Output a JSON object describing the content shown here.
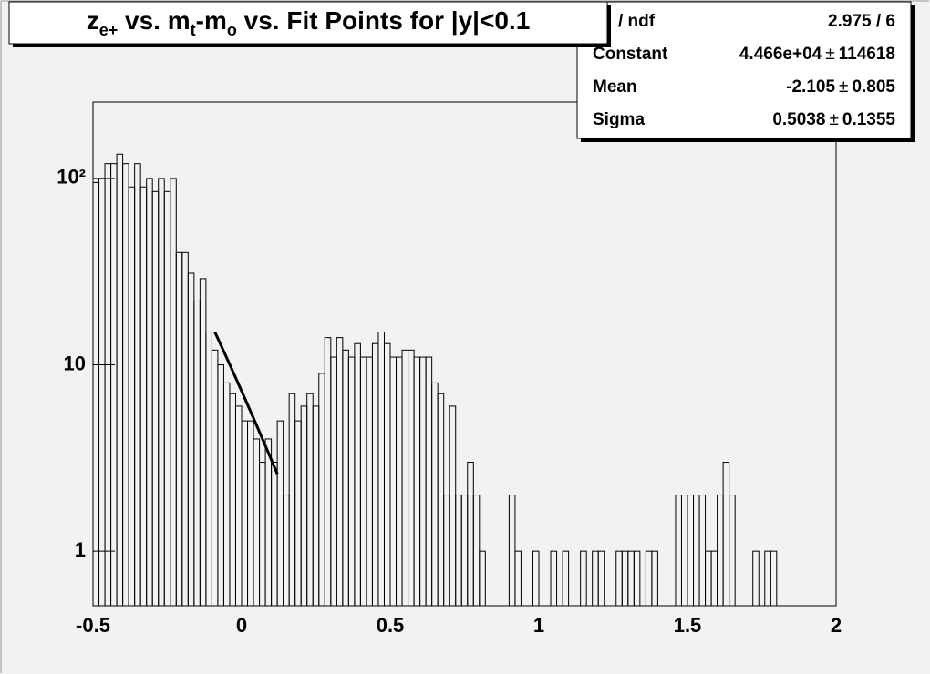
{
  "chart_data": {
    "type": "histogram",
    "title": [
      {
        "text": "z"
      },
      {
        "text": "e+",
        "sub": true
      },
      {
        "text": " vs. m"
      },
      {
        "text": "t",
        "sub": true
      },
      {
        "text": "-m"
      },
      {
        "text": "o",
        "sub": true
      },
      {
        "text": " vs. Fit Points for |y|<0.1"
      }
    ],
    "bins": [
      -0.5,
      -0.48,
      -0.46,
      -0.44,
      -0.42,
      -0.4,
      -0.38,
      -0.36,
      -0.34,
      -0.32,
      -0.3,
      -0.28,
      -0.26,
      -0.24,
      -0.22,
      -0.2,
      -0.18,
      -0.16,
      -0.14,
      -0.12,
      -0.1,
      -0.08,
      -0.06,
      -0.04,
      -0.02,
      0,
      0.02,
      0.04,
      0.06,
      0.08,
      0.1,
      0.12,
      0.14,
      0.16,
      0.18,
      0.2,
      0.22,
      0.24,
      0.26,
      0.28,
      0.3,
      0.32,
      0.34,
      0.36,
      0.38,
      0.4,
      0.42,
      0.44,
      0.46,
      0.48,
      0.5,
      0.52,
      0.54,
      0.56,
      0.58,
      0.6,
      0.62,
      0.64,
      0.66,
      0.68,
      0.7,
      0.72,
      0.74,
      0.76,
      0.78,
      0.8,
      0.82,
      0.84,
      0.86,
      0.88,
      0.9,
      0.92,
      0.94,
      0.96,
      0.98,
      1,
      1.02,
      1.04,
      1.06,
      1.08,
      1.1,
      1.12,
      1.14,
      1.16,
      1.18,
      1.2,
      1.22,
      1.24,
      1.26,
      1.28,
      1.3,
      1.32,
      1.34,
      1.36,
      1.38,
      1.4,
      1.42,
      1.44,
      1.46,
      1.48,
      1.5,
      1.52,
      1.54,
      1.56,
      1.58,
      1.6,
      1.62,
      1.64,
      1.66,
      1.68,
      1.7,
      1.72,
      1.74,
      1.76,
      1.78,
      1.8,
      1.82,
      1.84,
      1.86,
      1.88,
      1.9,
      1.92,
      1.94,
      1.96,
      1.98,
      2
    ],
    "values": [
      95,
      100,
      120,
      120,
      135,
      120,
      90,
      120,
      90,
      100,
      85,
      100,
      85,
      100,
      40,
      40,
      31,
      22,
      29,
      15,
      12,
      10,
      8,
      7,
      6,
      5,
      5,
      4,
      3,
      4,
      3,
      5,
      2,
      7,
      5,
      6,
      7,
      6,
      9,
      14,
      11,
      14,
      12,
      11,
      13,
      11,
      11,
      13,
      15,
      13,
      11,
      11,
      12,
      12,
      11,
      11,
      11,
      8,
      7,
      2,
      6,
      2,
      2,
      3,
      2,
      1,
      0,
      0,
      0,
      0,
      2,
      1,
      0,
      0,
      1,
      0,
      0,
      1,
      0,
      1,
      0,
      0,
      1,
      0,
      1,
      1,
      0,
      0,
      1,
      1,
      1,
      1,
      0,
      1,
      1,
      0,
      0,
      0,
      2,
      2,
      2,
      2,
      2,
      1,
      1,
      2,
      3,
      2,
      0,
      0,
      0,
      1,
      0,
      1,
      1,
      0,
      0,
      0,
      0,
      0,
      0,
      0,
      0,
      0,
      0
    ],
    "color": "#000000",
    "xlim": [
      -0.5,
      2
    ],
    "ylim": [
      0.51,
      257
    ],
    "log_y": true,
    "xticks": [
      -0.5,
      0,
      0.5,
      1,
      1.5,
      2
    ],
    "yticks": [
      1,
      10,
      {
        "value": 100,
        "label": "10²"
      }
    ],
    "fit_range": [
      -0.09,
      0.12
    ],
    "stats": {
      "header": {
        "name": "/ ndf",
        "value": "2.975 / 6"
      },
      "pm": "±",
      "rows": [
        {
          "name": "Constant",
          "value": {
            "value": 44660,
            "label": "4.466e+04"
          },
          "error": 114618
        },
        {
          "name": "Mean",
          "value": -2.105,
          "error": 0.805
        },
        {
          "name": "Sigma",
          "value": 0.5038,
          "error": 0.1355
        }
      ]
    }
  }
}
